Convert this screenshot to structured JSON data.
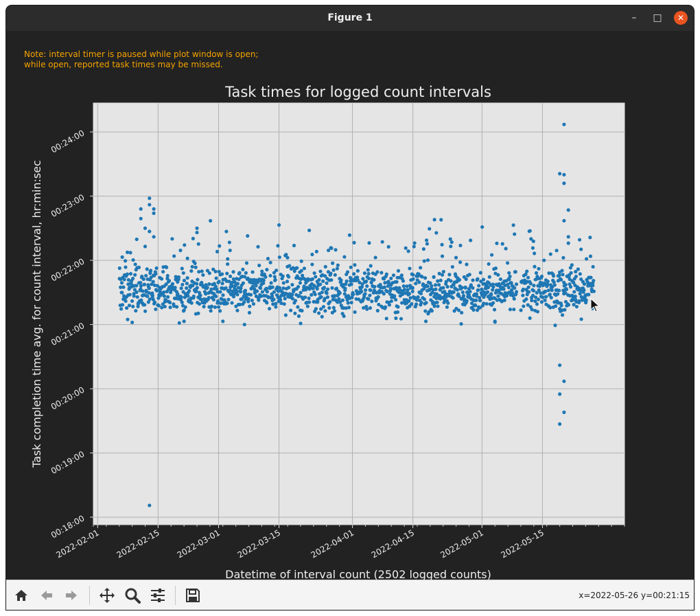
{
  "window": {
    "title": "Figure 1",
    "minimize_glyph": "–",
    "maximize_glyph": "□",
    "close_glyph": "✕"
  },
  "note": {
    "line1": "Note: interval timer is paused while plot window is open;",
    "line2": "while open, reported task times may be missed.",
    "color": "#f5a300"
  },
  "chart_data": {
    "type": "scatter",
    "title": "Task times for logged count intervals",
    "xlabel": "Datetime of interval count (2502 logged counts)",
    "ylabel": "Task completion time avg. for count interval, hr:min:sec",
    "x_tick_labels": [
      "2022-02-01",
      "2022-02-15",
      "2022-03-01",
      "2022-03-15",
      "2022-04-01",
      "2022-04-15",
      "2022-05-01",
      "2022-05-15"
    ],
    "y_tick_labels": [
      "00:18:00",
      "00:19:00",
      "00:20:00",
      "00:21:00",
      "00:22:00",
      "00:23:00",
      "00:24:00"
    ],
    "xlim": [
      "2022-01-31",
      "2022-06-03"
    ],
    "ylim": [
      "00:17:53",
      "00:24:27"
    ],
    "grid": true,
    "point_color": "#1f77b4",
    "axes_background": "#e5e5e5",
    "logged_counts": 2502,
    "sampled_series_note_free": true,
    "band": {
      "x_range": [
        "2022-02-06",
        "2022-05-27"
      ],
      "typical_y": "00:21:32",
      "spread_seconds": 14,
      "gap": [
        "2022-05-09",
        "2022-05-10"
      ]
    },
    "outliers": [
      {
        "x": "2022-05-20",
        "y": "00:24:07"
      },
      {
        "x": "2022-05-19",
        "y": "00:23:21"
      },
      {
        "x": "2022-05-20",
        "y": "00:23:20"
      },
      {
        "x": "2022-05-20",
        "y": "00:23:12"
      },
      {
        "x": "2022-05-21",
        "y": "00:22:47"
      },
      {
        "x": "2022-05-20",
        "y": "00:22:37"
      },
      {
        "x": "2022-05-21",
        "y": "00:22:22"
      },
      {
        "x": "2022-05-21",
        "y": "00:22:16"
      },
      {
        "x": "2022-05-19",
        "y": "00:20:22"
      },
      {
        "x": "2022-05-20",
        "y": "00:20:07"
      },
      {
        "x": "2022-05-19",
        "y": "00:19:55"
      },
      {
        "x": "2022-05-20",
        "y": "00:19:38"
      },
      {
        "x": "2022-05-19",
        "y": "00:19:27"
      },
      {
        "x": "2022-02-13",
        "y": "00:22:58"
      },
      {
        "x": "2022-02-13",
        "y": "00:22:52"
      },
      {
        "x": "2022-02-14",
        "y": "00:22:48"
      },
      {
        "x": "2022-02-14",
        "y": "00:22:44"
      },
      {
        "x": "2022-02-11",
        "y": "00:22:48"
      },
      {
        "x": "2022-02-11",
        "y": "00:22:39"
      },
      {
        "x": "2022-02-12",
        "y": "00:22:30"
      },
      {
        "x": "2022-02-13",
        "y": "00:22:27"
      },
      {
        "x": "2022-02-14",
        "y": "00:22:22"
      },
      {
        "x": "2022-02-24",
        "y": "00:22:30"
      },
      {
        "x": "2022-02-24",
        "y": "00:22:26"
      },
      {
        "x": "2022-03-15",
        "y": "00:22:33"
      },
      {
        "x": "2022-03-22",
        "y": "00:22:28"
      },
      {
        "x": "2022-04-20",
        "y": "00:22:38"
      },
      {
        "x": "2022-04-24",
        "y": "00:22:17"
      },
      {
        "x": "2022-02-13",
        "y": "00:18:11"
      },
      {
        "x": "2022-02-09",
        "y": "00:21:02"
      },
      {
        "x": "2022-02-21",
        "y": "00:21:03"
      },
      {
        "x": "2022-03-02",
        "y": "00:21:03"
      },
      {
        "x": "2022-03-07",
        "y": "00:21:00"
      },
      {
        "x": "2022-03-20",
        "y": "00:21:01"
      },
      {
        "x": "2022-04-18",
        "y": "00:21:03"
      },
      {
        "x": "2022-05-04",
        "y": "00:21:03"
      },
      {
        "x": "2022-05-24",
        "y": "00:21:05"
      }
    ]
  },
  "toolbar": {
    "home_icon": "home-icon",
    "back_icon": "back-arrow-icon",
    "forward_icon": "forward-arrow-icon",
    "pan_icon": "pan-icon",
    "zoom_icon": "zoom-icon",
    "configure_icon": "configure-subplots-icon",
    "save_icon": "save-icon",
    "coords": "x=2022-05-26 y=00:21:15"
  }
}
